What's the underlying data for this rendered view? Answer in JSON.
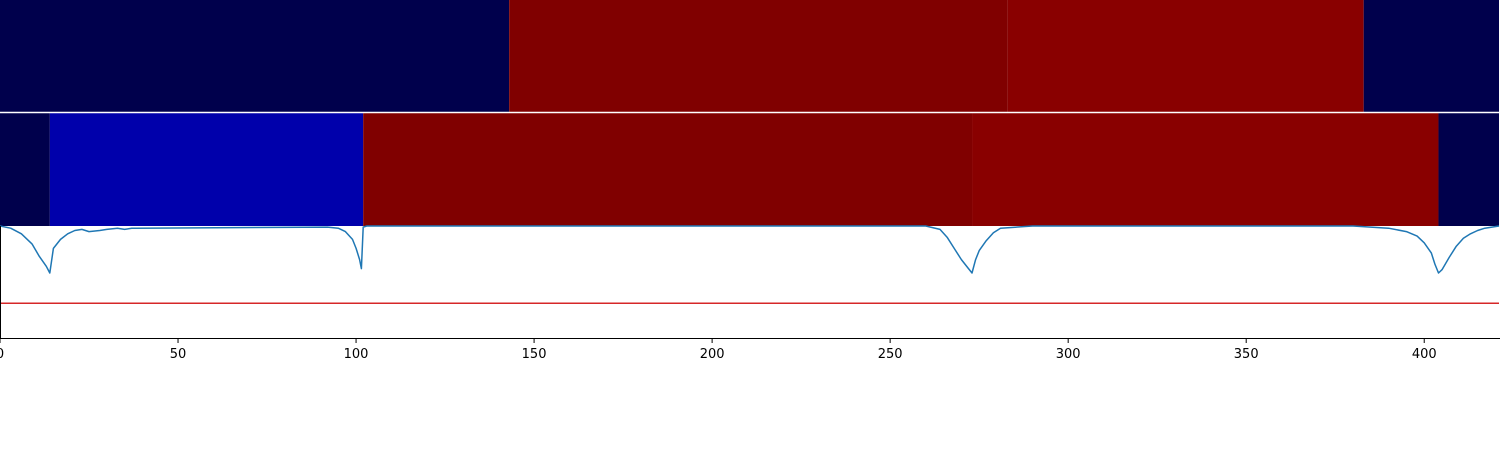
{
  "chart_data": [
    {
      "type": "heatmap",
      "panel": "top",
      "segments": [
        {
          "start": 0,
          "end": 143,
          "color": "#00004c"
        },
        {
          "start": 143,
          "end": 283,
          "color": "#800000"
        },
        {
          "start": 283,
          "end": 383,
          "color": "#890000"
        },
        {
          "start": 383,
          "end": 421,
          "color": "#00004c"
        }
      ]
    },
    {
      "type": "heatmap",
      "panel": "middle",
      "segments": [
        {
          "start": 0,
          "end": 14,
          "color": "#00004c"
        },
        {
          "start": 14,
          "end": 102,
          "color": "#0000ab"
        },
        {
          "start": 102,
          "end": 273,
          "color": "#800000"
        },
        {
          "start": 273,
          "end": 404,
          "color": "#890000"
        },
        {
          "start": 404,
          "end": 421,
          "color": "#00004c"
        }
      ]
    },
    {
      "type": "line",
      "panel": "bottom",
      "xlim": [
        0,
        421
      ],
      "ylim": [
        0,
        1
      ],
      "xticks": [
        0,
        50,
        100,
        150,
        200,
        250,
        300,
        350,
        400
      ],
      "threshold": 0.31,
      "threshold_color": "#d62728",
      "line_color": "#1f77b4",
      "x": [
        0,
        3,
        6,
        9,
        11,
        13,
        14,
        15,
        17,
        19,
        21,
        23,
        25,
        28,
        30,
        33,
        35,
        37,
        38,
        92,
        95,
        97,
        99,
        100,
        101,
        101.5,
        102,
        103,
        110,
        260,
        264,
        266,
        268,
        270,
        272,
        273,
        274,
        275,
        277,
        279,
        281,
        290,
        380,
        385,
        390,
        395,
        398,
        400,
        402,
        403,
        404,
        405,
        407,
        409,
        411,
        413,
        415,
        417,
        419,
        421
      ],
      "y": [
        1.0,
        0.98,
        0.93,
        0.84,
        0.73,
        0.64,
        0.58,
        0.8,
        0.88,
        0.93,
        0.96,
        0.97,
        0.95,
        0.96,
        0.97,
        0.98,
        0.97,
        0.98,
        0.98,
        0.99,
        0.98,
        0.95,
        0.88,
        0.8,
        0.7,
        0.62,
        0.99,
        1.0,
        1.0,
        1.0,
        0.97,
        0.9,
        0.8,
        0.7,
        0.62,
        0.58,
        0.7,
        0.78,
        0.87,
        0.94,
        0.98,
        1.0,
        1.0,
        0.99,
        0.98,
        0.95,
        0.91,
        0.85,
        0.76,
        0.66,
        0.58,
        0.61,
        0.72,
        0.82,
        0.89,
        0.93,
        0.96,
        0.98,
        0.99,
        1.0
      ]
    }
  ]
}
